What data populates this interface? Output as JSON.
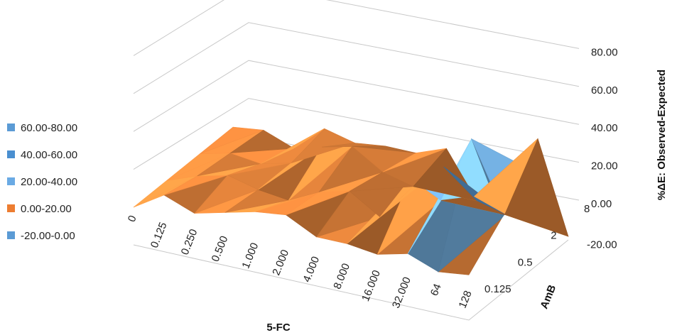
{
  "chart_data": {
    "type": "surface",
    "title": "",
    "x_axis_title": "5-FC",
    "y_axis_title": "AmB",
    "z_axis_title": "%ΔE: Observed-Expected",
    "x_categories": [
      "0",
      "0.125",
      "0.250",
      "0.500",
      "1.000",
      "2.000",
      "4.000",
      "8.000",
      "16.000",
      "32.000",
      "64",
      "128"
    ],
    "y_categories": [
      "0.125",
      "0.5",
      "2",
      "8"
    ],
    "z_ticks": [
      "-20.00",
      "0.00",
      "20.00",
      "40.00",
      "60.00",
      "80.00"
    ],
    "zlim": [
      -20,
      80
    ],
    "legend": [
      {
        "label": "60.00-80.00",
        "color": "#5b9bd5"
      },
      {
        "label": "40.00-60.00",
        "color": "#4a8fd0"
      },
      {
        "label": "20.00-40.00",
        "color": "#6aaae4"
      },
      {
        "label": "0.00-20.00",
        "color": "#ed7d31"
      },
      {
        "label": "-20.00-0.00",
        "color": "#5b9bd5"
      }
    ],
    "band_colors": {
      "below_0": "#62a8e6",
      "0_20": "#ee8a3e",
      "20_40": "#79b8ec",
      "40_60": "#5b9bd5",
      "60_80": "#4a8fd0"
    },
    "values": [
      [
        0,
        10,
        4,
        8,
        12,
        14,
        6,
        6,
        4,
        8,
        2,
        4
      ],
      [
        0,
        6,
        10,
        6,
        4,
        12,
        16,
        6,
        30,
        22,
        58,
        20
      ],
      [
        0,
        4,
        2,
        6,
        18,
        22,
        12,
        8,
        22,
        10,
        4,
        30
      ],
      [
        0,
        2,
        -4,
        10,
        6,
        8,
        8,
        14,
        -10,
        -14,
        30,
        -18
      ]
    ]
  }
}
